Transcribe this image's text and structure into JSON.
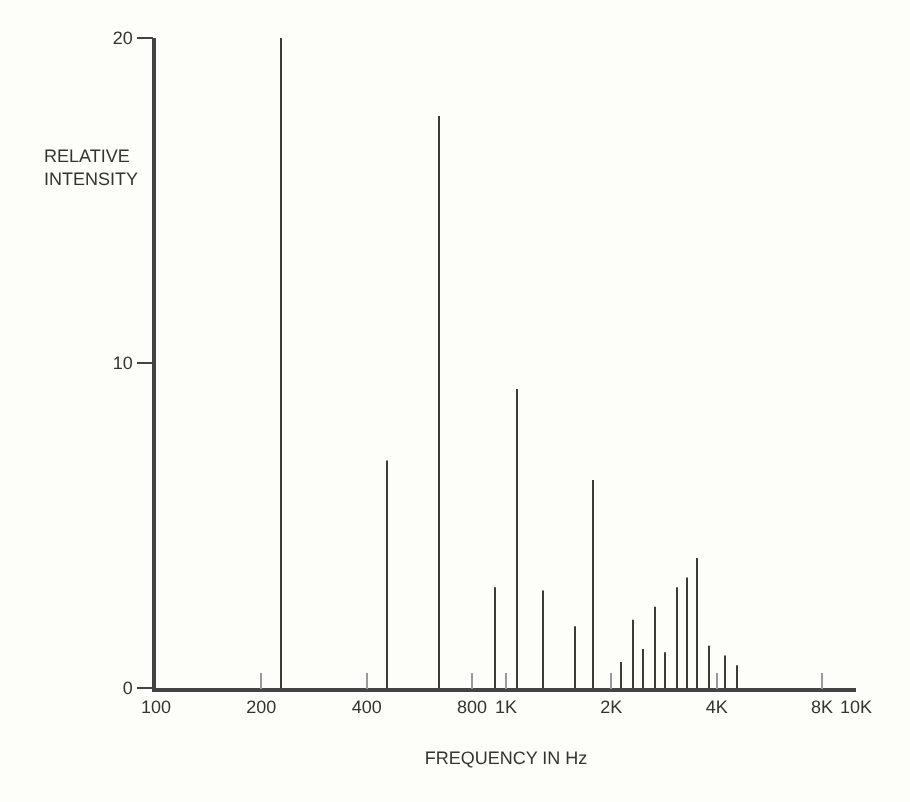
{
  "chart_data": {
    "type": "bar",
    "xlabel": "FREQUENCY IN Hz",
    "ylabel": "RELATIVE INTENSITY",
    "x": [
      228,
      459,
      647,
      929,
      1070,
      1280,
      1570,
      1780,
      2120,
      2310,
      2470,
      2650,
      2840,
      3070,
      3280,
      3520,
      3800,
      4250,
      4580
    ],
    "values": [
      20,
      7,
      17.6,
      3.1,
      9.2,
      3,
      1.9,
      6.4,
      0.8,
      2.1,
      1.2,
      2.5,
      1.1,
      3.1,
      3.4,
      4,
      1.3,
      1,
      0.7
    ],
    "color": "#3a3d33",
    "log": "x",
    "grid": false,
    "xlim": [
      100,
      10000
    ],
    "xticks": [
      {
        "value": 100,
        "label": "100"
      },
      {
        "value": 200,
        "label": "200"
      },
      {
        "value": 400,
        "label": "400"
      },
      {
        "value": 800,
        "label": "800"
      },
      {
        "value": 1000,
        "label": "1K"
      },
      {
        "value": 2000,
        "label": "2K"
      },
      {
        "value": 4000,
        "label": "4K"
      },
      {
        "value": 8000,
        "label": "8K"
      },
      {
        "value": 10000,
        "label": "10K"
      }
    ],
    "ylim": [
      0,
      20
    ],
    "yticks": [
      0,
      10,
      20
    ]
  }
}
